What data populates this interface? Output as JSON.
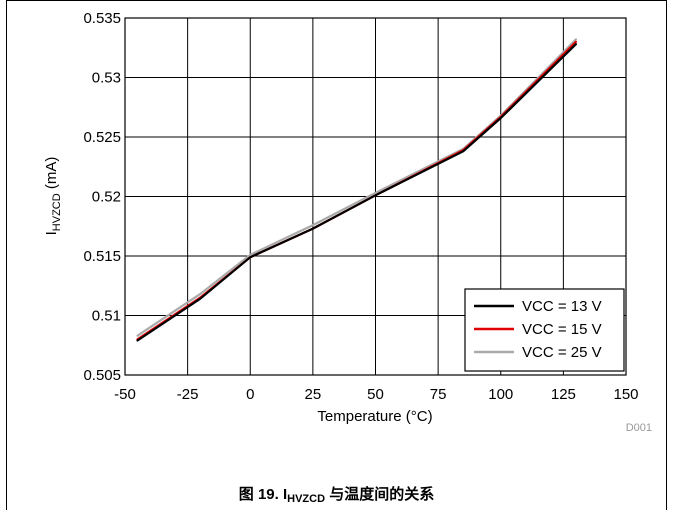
{
  "chart_data": {
    "type": "line",
    "xlabel": "Temperature (°C)",
    "ylabel_main": "I",
    "ylabel_sub": "HVZCD",
    "ylabel_unit": " (mA)",
    "xlim": [
      -50,
      150
    ],
    "ylim": [
      0.505,
      0.535
    ],
    "x_ticks": [
      "-50",
      "-25",
      "0",
      "25",
      "50",
      "75",
      "100",
      "125",
      "150"
    ],
    "y_ticks": [
      "0.505",
      "0.51",
      "0.515",
      "0.52",
      "0.525",
      "0.53",
      "0.535"
    ],
    "grid": true,
    "legend_position": "bottom-right",
    "series": [
      {
        "name": "VCC = 13 V",
        "color": "#000000",
        "x": [
          -45,
          -20,
          0,
          25,
          50,
          85,
          100,
          130
        ],
        "y": [
          0.5079,
          0.5114,
          0.5149,
          0.5173,
          0.5201,
          0.5238,
          0.5266,
          0.5328
        ]
      },
      {
        "name": "VCC = 15 V",
        "color": "#e00000",
        "x": [
          -45,
          -20,
          0,
          25,
          50,
          85,
          100,
          130
        ],
        "y": [
          0.508,
          0.5115,
          0.5149,
          0.5173,
          0.5201,
          0.5239,
          0.5267,
          0.533
        ]
      },
      {
        "name": "VCC = 25 V",
        "color": "#aaaaaa",
        "x": [
          -45,
          -20,
          0,
          25,
          50,
          85,
          100,
          130
        ],
        "y": [
          0.5083,
          0.5118,
          0.5151,
          0.5176,
          0.5203,
          0.524,
          0.5268,
          0.5332
        ]
      }
    ]
  },
  "code_label": "D001",
  "caption": {
    "prefix": "图 19. I",
    "sub": "HVZCD",
    "suffix": " 与温度间的关系"
  }
}
